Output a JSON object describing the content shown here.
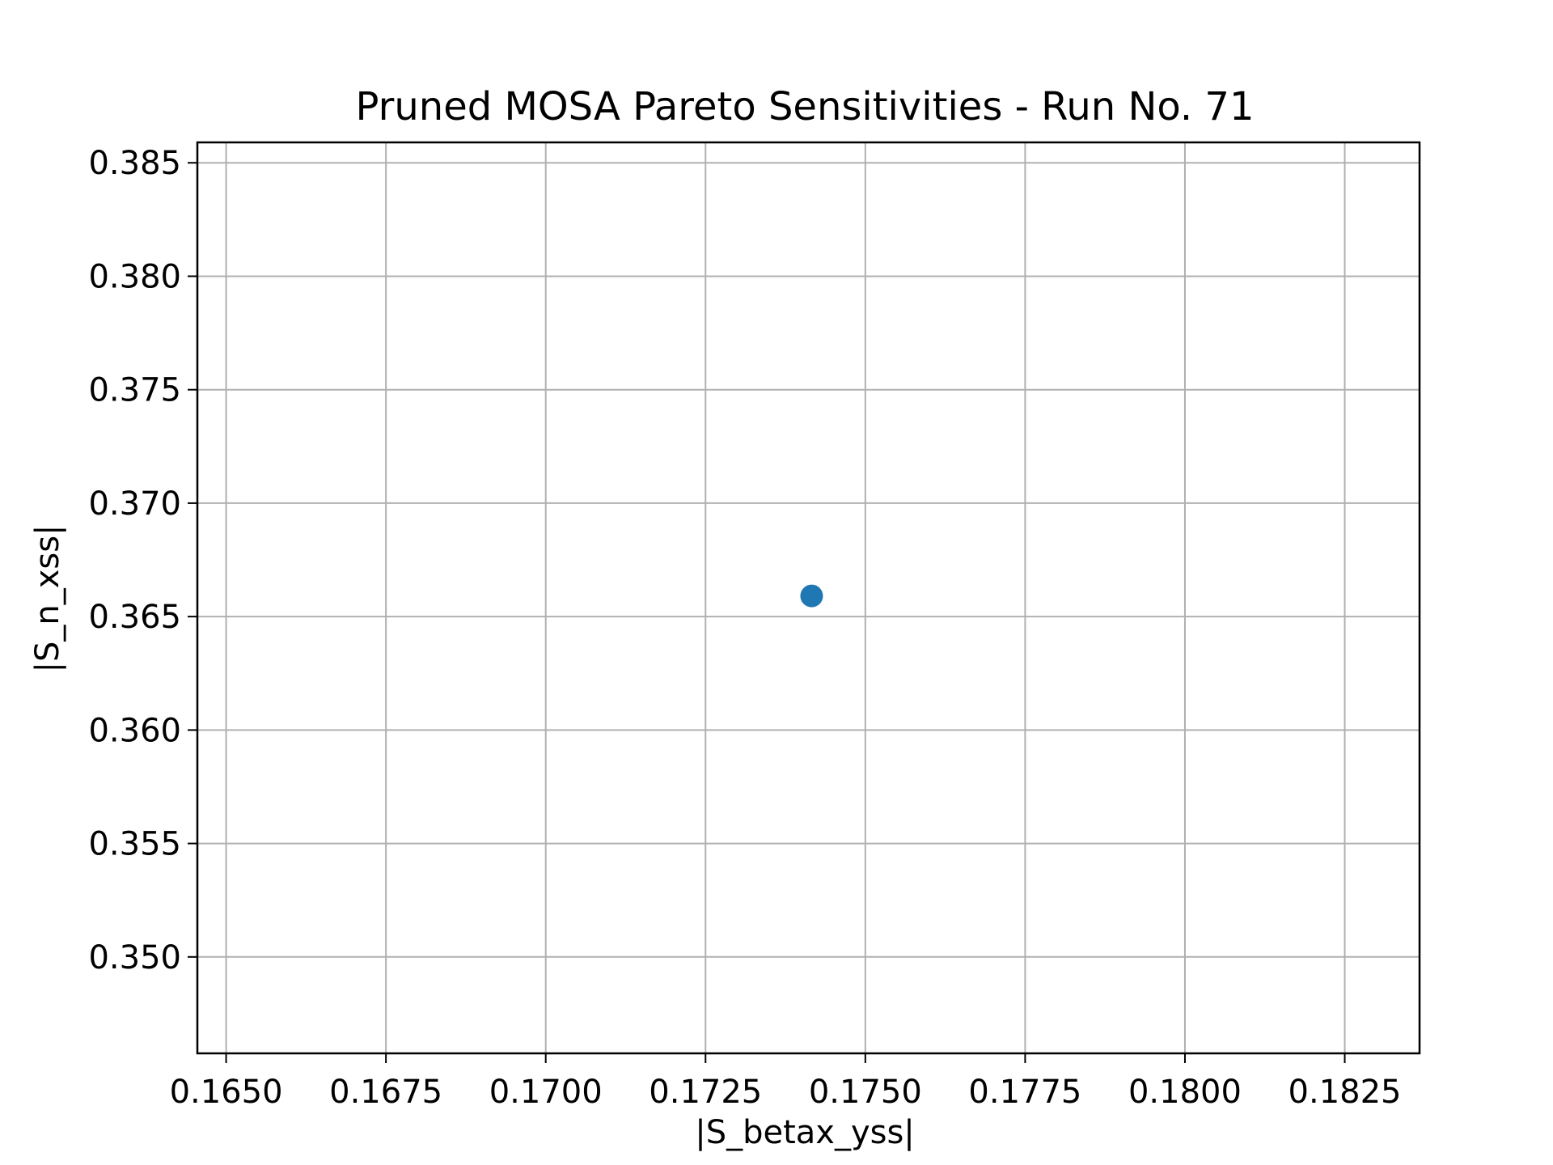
{
  "chart_data": {
    "type": "scatter",
    "title": "Pruned MOSA Pareto Sensitivities - Run No. 71",
    "xlabel": "|S_betax_yss|",
    "ylabel": "|S_n_xss|",
    "xlim": [
      0.16455,
      0.18367
    ],
    "ylim": [
      0.34575,
      0.3859
    ],
    "xticks": [
      0.165,
      0.1675,
      0.17,
      0.1725,
      0.175,
      0.1775,
      0.18,
      0.1825
    ],
    "xtick_labels": [
      "0.1650",
      "0.1675",
      "0.1700",
      "0.1725",
      "0.1750",
      "0.1775",
      "0.1800",
      "0.1825"
    ],
    "yticks": [
      0.35,
      0.355,
      0.36,
      0.365,
      0.37,
      0.375,
      0.38,
      0.385
    ],
    "ytick_labels": [
      "0.350",
      "0.355",
      "0.360",
      "0.365",
      "0.370",
      "0.375",
      "0.380",
      "0.385"
    ],
    "grid": true,
    "series": [
      {
        "x": [
          0.17416
        ],
        "y": [
          0.36591
        ],
        "color": "#1f77b4"
      }
    ]
  }
}
